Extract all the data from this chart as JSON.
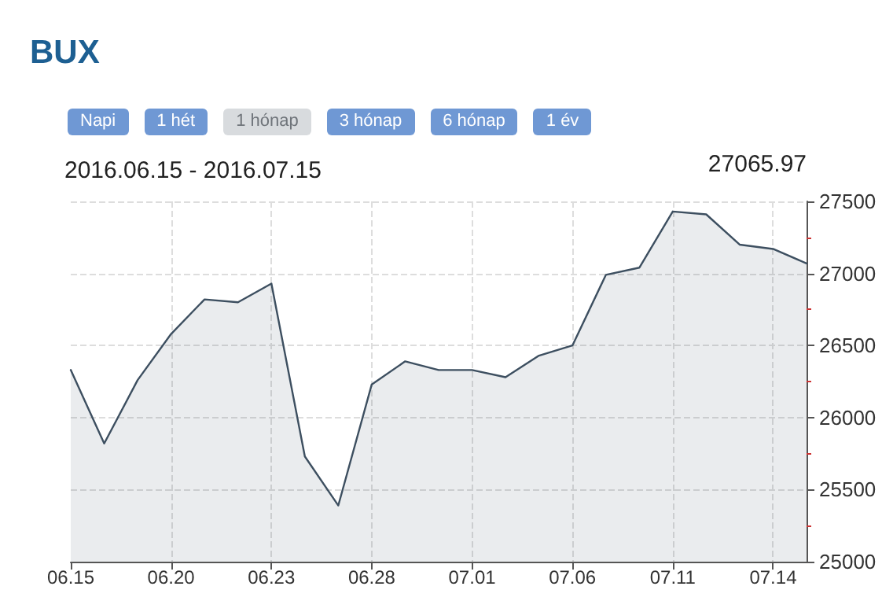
{
  "chart_data": {
    "type": "area",
    "title": "BUX",
    "subtitle": "2016.06.15 - 2016.07.15",
    "annotations": [
      "Napi",
      "1 hét",
      "1 hónap",
      "3 hónap",
      "6 hónap",
      "1 év",
      "27065.97"
    ],
    "categories": [
      "06.15",
      null,
      null,
      "06.20",
      null,
      null,
      "06.23",
      null,
      null,
      "06.28",
      null,
      null,
      "07.01",
      null,
      null,
      "07.06",
      null,
      null,
      "07.11",
      null,
      null,
      "07.14",
      null
    ],
    "series": [
      {
        "color": "#3d4f60",
        "values": [
          26330,
          25820,
          26260,
          26580,
          26820,
          26800,
          26930,
          25730,
          25390,
          26230,
          26390,
          26330,
          26330,
          26280,
          26430,
          26500,
          26990,
          27040,
          27430,
          27410,
          27200,
          27170,
          27070
        ]
      }
    ],
    "ylim": [
      25000,
      27500
    ],
    "yticks": [
      25000,
      25500,
      26000,
      26500,
      27000,
      27500
    ],
    "grid": true,
    "marker": "none",
    "line_style": "solid"
  }
}
